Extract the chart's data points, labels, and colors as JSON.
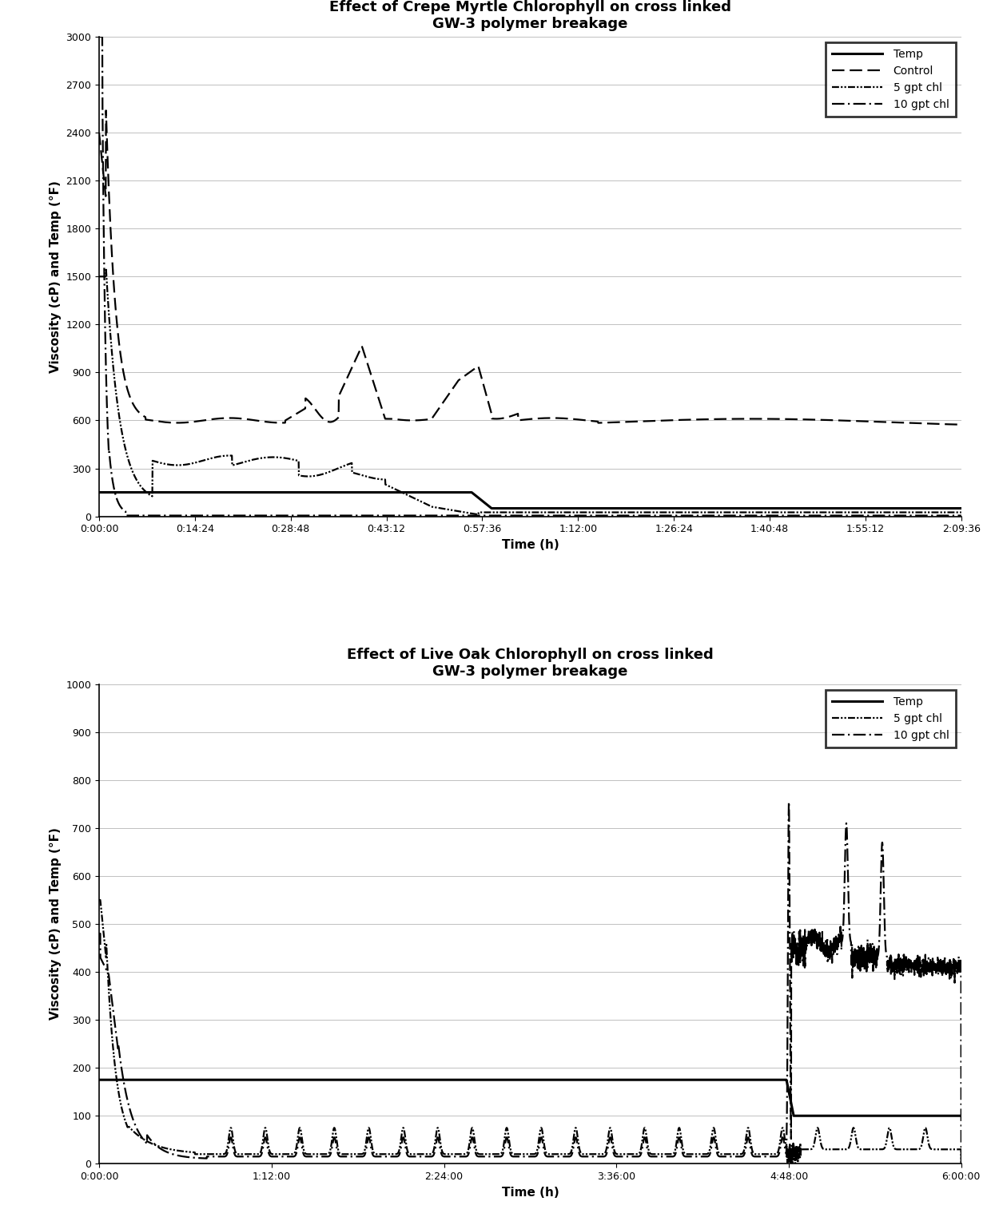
{
  "chart1": {
    "title": "Effect of Crepe Myrtle Chlorophyll on cross linked\nGW-3 polymer breakage",
    "ylabel": "Viscosity (cP) and Temp (°F)",
    "xlabel": "Time (h)",
    "ylim": [
      0,
      3000
    ],
    "yticks": [
      0,
      300,
      600,
      900,
      1200,
      1500,
      1800,
      2100,
      2400,
      2700,
      3000
    ],
    "xlim_minutes": [
      0,
      129.6
    ],
    "xtick_minutes": [
      0,
      14.4,
      28.8,
      43.2,
      57.6,
      72.0,
      86.4,
      100.8,
      115.2,
      129.6
    ],
    "xtick_labels": [
      "0:00:00",
      "0:14:24",
      "0:28:48",
      "0:43:12",
      "0:57:36",
      "1:12:00",
      "1:26:24",
      "1:40:48",
      "1:55:12",
      "2:09:36"
    ],
    "legend_labels": [
      "Temp",
      "Control",
      "5 gpt chl",
      "10 gpt chl"
    ]
  },
  "chart2": {
    "title": "Effect of Live Oak Chlorophyll on cross linked\nGW-3 polymer breakage",
    "ylabel": "Viscosity (cP) and Temp (°F)",
    "xlabel": "Time (h)",
    "ylim": [
      0,
      1000
    ],
    "yticks": [
      0,
      100,
      200,
      300,
      400,
      500,
      600,
      700,
      800,
      900,
      1000
    ],
    "xlim_minutes": [
      0,
      360
    ],
    "xtick_minutes": [
      0,
      72,
      144,
      216,
      288,
      360
    ],
    "xtick_labels": [
      "0:00:00",
      "1:12:00",
      "2:24:00",
      "3:36:00",
      "4:48:00",
      "6:00:00"
    ],
    "legend_labels": [
      "Temp",
      "5 gpt chl",
      "10 gpt chl"
    ]
  },
  "background_color": "#ffffff",
  "line_color": "#000000",
  "title_fontsize": 13,
  "label_fontsize": 11,
  "tick_fontsize": 9,
  "legend_fontsize": 10
}
